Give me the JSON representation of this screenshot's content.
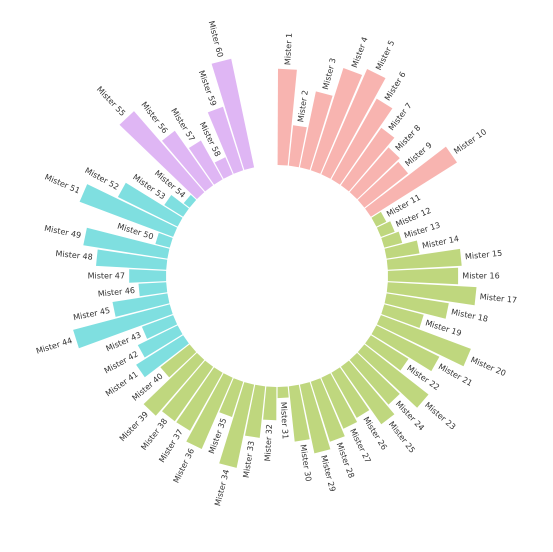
{
  "chart_data": {
    "type": "bar",
    "layout": "circular",
    "title": "",
    "xlabel": "",
    "ylabel": "",
    "grid": false,
    "legend": "none",
    "ylim": [
      0,
      100
    ],
    "groups": [
      {
        "name": "",
        "color": "#f8b4b0"
      },
      {
        "name": "",
        "color": "#bfd77e"
      },
      {
        "name": "",
        "color": "#7fdfe0"
      },
      {
        "name": "",
        "color": "#dfb6f4"
      }
    ],
    "bars": [
      {
        "label": "Mister 1",
        "value": 52,
        "group": 0
      },
      {
        "label": "Mister 2",
        "value": 22,
        "group": 0
      },
      {
        "label": "Mister 3",
        "value": 42,
        "group": 0
      },
      {
        "label": "Mister 4",
        "value": 58,
        "group": 0
      },
      {
        "label": "Mister 5",
        "value": 62,
        "group": 0
      },
      {
        "label": "Mister 6",
        "value": 50,
        "group": 0
      },
      {
        "label": "Mister 7",
        "value": 38,
        "group": 0
      },
      {
        "label": "Mister 8",
        "value": 32,
        "group": 0
      },
      {
        "label": "Mister 9",
        "value": 30,
        "group": 0
      },
      {
        "label": "Mister 10",
        "value": 55,
        "group": 0
      },
      {
        "label": "Mister 11",
        "value": 6,
        "group": 1
      },
      {
        "label": "Mister 12",
        "value": 8,
        "group": 1
      },
      {
        "label": "Mister 13",
        "value": 10,
        "group": 1
      },
      {
        "label": "Mister 14",
        "value": 18,
        "group": 1
      },
      {
        "label": "Mister 15",
        "value": 40,
        "group": 1
      },
      {
        "label": "Mister 16",
        "value": 38,
        "group": 1
      },
      {
        "label": "Mister 17",
        "value": 48,
        "group": 1
      },
      {
        "label": "Mister 18",
        "value": 34,
        "group": 1
      },
      {
        "label": "Mister 19",
        "value": 22,
        "group": 1
      },
      {
        "label": "Mister 20",
        "value": 52,
        "group": 1
      },
      {
        "label": "Mister 21",
        "value": 38,
        "group": 1
      },
      {
        "label": "Mister 22",
        "value": 24,
        "group": 1
      },
      {
        "label": "Mister 23",
        "value": 44,
        "group": 1
      },
      {
        "label": "Mister 24",
        "value": 32,
        "group": 1
      },
      {
        "label": "Mister 25",
        "value": 38,
        "group": 1
      },
      {
        "label": "Mister 26",
        "value": 28,
        "group": 1
      },
      {
        "label": "Mister 27",
        "value": 30,
        "group": 1
      },
      {
        "label": "Mister 28",
        "value": 34,
        "group": 1
      },
      {
        "label": "Mister 29",
        "value": 38,
        "group": 1
      },
      {
        "label": "Mister 30",
        "value": 30,
        "group": 1
      },
      {
        "label": "Mister 31",
        "value": 6,
        "group": 1
      },
      {
        "label": "Mister 32",
        "value": 18,
        "group": 1
      },
      {
        "label": "Mister 33",
        "value": 28,
        "group": 1
      },
      {
        "label": "Mister 34",
        "value": 46,
        "group": 1
      },
      {
        "label": "Mister 35",
        "value": 20,
        "group": 1
      },
      {
        "label": "Mister 36",
        "value": 42,
        "group": 1
      },
      {
        "label": "Mister 37",
        "value": 36,
        "group": 1
      },
      {
        "label": "Mister 38",
        "value": 36,
        "group": 1
      },
      {
        "label": "Mister 39",
        "value": 40,
        "group": 1
      },
      {
        "label": "Mister 40",
        "value": 20,
        "group": 1
      },
      {
        "label": "Mister 41",
        "value": 30,
        "group": 2
      },
      {
        "label": "Mister 42",
        "value": 24,
        "group": 2
      },
      {
        "label": "Mister 43",
        "value": 18,
        "group": 2
      },
      {
        "label": "Mister 44",
        "value": 54,
        "group": 2
      },
      {
        "label": "Mister 45",
        "value": 30,
        "group": 2
      },
      {
        "label": "Mister 46",
        "value": 15,
        "group": 2
      },
      {
        "label": "Mister 47",
        "value": 20,
        "group": 2
      },
      {
        "label": "Mister 48",
        "value": 38,
        "group": 2
      },
      {
        "label": "Mister 49",
        "value": 46,
        "group": 2
      },
      {
        "label": "Mister 50",
        "value": 8,
        "group": 2
      },
      {
        "label": "Mister 51",
        "value": 54,
        "group": 2
      },
      {
        "label": "Mister 52",
        "value": 36,
        "group": 2
      },
      {
        "label": "Mister 53",
        "value": 12,
        "group": 2
      },
      {
        "label": "Mister 54",
        "value": 4,
        "group": 2
      },
      {
        "label": "Mister 55",
        "value": 58,
        "group": 3
      },
      {
        "label": "Mister 56",
        "value": 36,
        "group": 3
      },
      {
        "label": "Mister 57",
        "value": 24,
        "group": 3
      },
      {
        "label": "Mister 58",
        "value": 10,
        "group": 3
      },
      {
        "label": "Mister 59",
        "value": 36,
        "group": 3
      },
      {
        "label": "Mister 60",
        "value": 60,
        "group": 3
      }
    ]
  }
}
